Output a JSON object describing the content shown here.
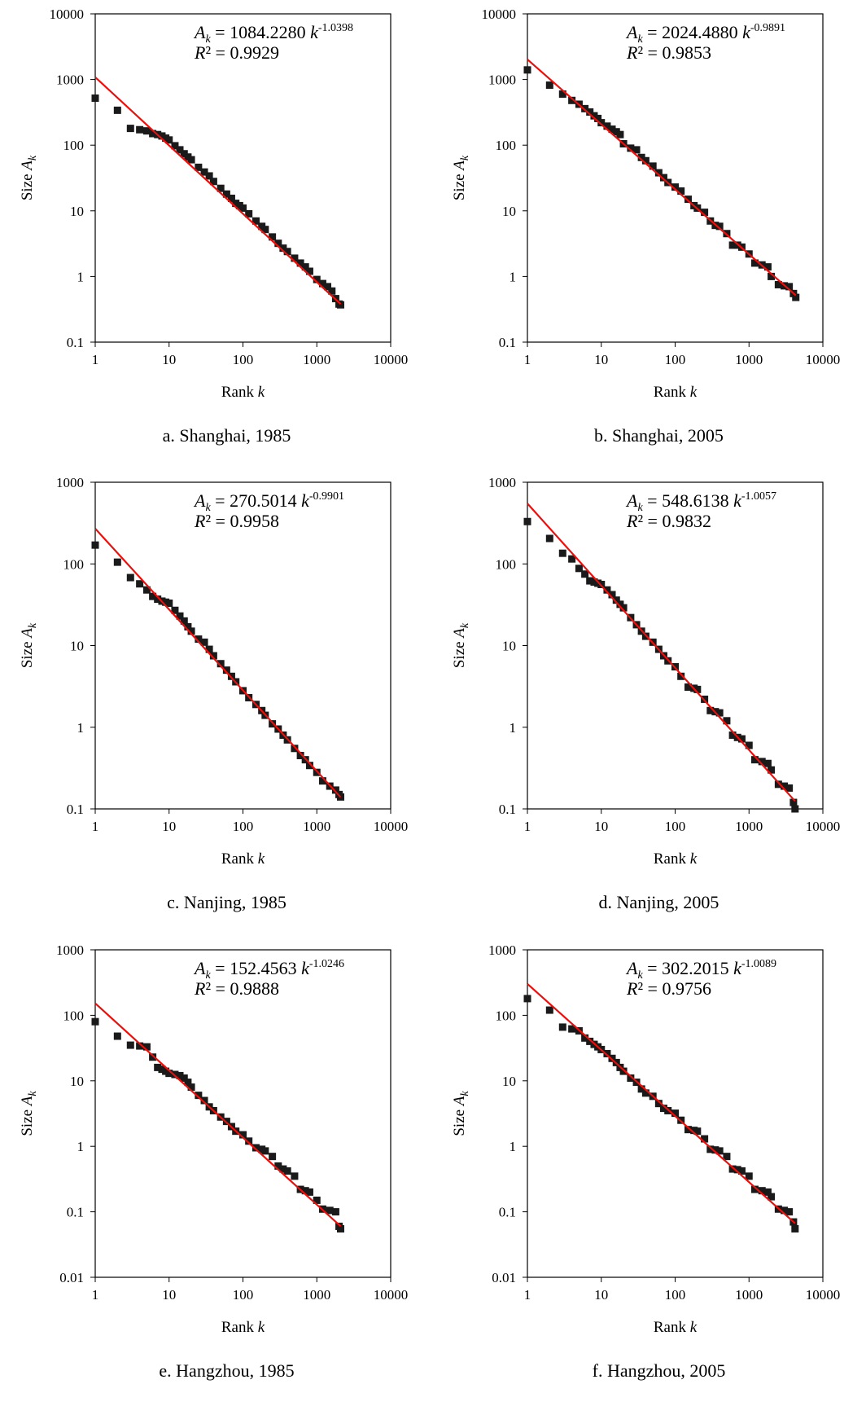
{
  "chart_data": [
    {
      "type": "scatter",
      "caption": "a. Shanghai, 1985",
      "xlabel_text": "Rank ",
      "xlabel_var": "k",
      "ylabel_text": "Size ",
      "ylabel_var": "A",
      "ylabel_sub": "k",
      "xlim": [
        1,
        10000
      ],
      "ylim": [
        0.1,
        10000
      ],
      "log_x": true,
      "log_y": true,
      "grid": false,
      "xticks": [
        "1",
        "10",
        "100",
        "1000",
        "10000"
      ],
      "yticks": [
        "0.1",
        "1",
        "10",
        "100",
        "1000",
        "10000"
      ],
      "equation": {
        "lhs": "A",
        "lhs_sub": "k",
        "coef": " = 1084.2280 ",
        "var": "k",
        "exp": "-1.0398"
      },
      "r2": {
        "label": "R",
        "text": "² = 0.9929"
      },
      "fit": {
        "a": 1084.228,
        "b": -1.0398
      },
      "marker_color": "#1a1a1a",
      "fit_color": "#e8100c",
      "points": [
        [
          1,
          520
        ],
        [
          2,
          340
        ],
        [
          3,
          180
        ],
        [
          4,
          172
        ],
        [
          5,
          165
        ],
        [
          6,
          150
        ],
        [
          7,
          145
        ],
        [
          8,
          138
        ],
        [
          9,
          128
        ],
        [
          10,
          120
        ],
        [
          12,
          98
        ],
        [
          14,
          85
        ],
        [
          16,
          74
        ],
        [
          18,
          66
        ],
        [
          20,
          60
        ],
        [
          25,
          46
        ],
        [
          30,
          39
        ],
        [
          35,
          34
        ],
        [
          40,
          28
        ],
        [
          50,
          22
        ],
        [
          60,
          18
        ],
        [
          70,
          15.5
        ],
        [
          80,
          13
        ],
        [
          90,
          12
        ],
        [
          100,
          11
        ],
        [
          120,
          9
        ],
        [
          150,
          7
        ],
        [
          180,
          5.8
        ],
        [
          200,
          5.2
        ],
        [
          250,
          4
        ],
        [
          300,
          3.2
        ],
        [
          350,
          2.7
        ],
        [
          400,
          2.4
        ],
        [
          500,
          1.9
        ],
        [
          600,
          1.6
        ],
        [
          700,
          1.4
        ],
        [
          800,
          1.2
        ],
        [
          1000,
          0.9
        ],
        [
          1200,
          0.78
        ],
        [
          1400,
          0.7
        ],
        [
          1600,
          0.6
        ],
        [
          1800,
          0.46
        ],
        [
          2000,
          0.38
        ],
        [
          2100,
          0.37
        ]
      ]
    },
    {
      "type": "scatter",
      "caption": "b. Shanghai, 2005",
      "xlabel_text": "Rank ",
      "xlabel_var": "k",
      "ylabel_text": "Size ",
      "ylabel_var": "A",
      "ylabel_sub": "k",
      "xlim": [
        1,
        10000
      ],
      "ylim": [
        0.1,
        10000
      ],
      "log_x": true,
      "log_y": true,
      "grid": false,
      "xticks": [
        "1",
        "10",
        "100",
        "1000",
        "10000"
      ],
      "yticks": [
        "0.1",
        "1",
        "10",
        "100",
        "1000",
        "10000"
      ],
      "equation": {
        "lhs": "A",
        "lhs_sub": "k",
        "coef": " = 2024.4880 ",
        "var": "k",
        "exp": "-0.9891"
      },
      "r2": {
        "label": "R",
        "text": "² = 0.9853"
      },
      "fit": {
        "a": 2024.488,
        "b": -0.9891
      },
      "marker_color": "#1a1a1a",
      "fit_color": "#e8100c",
      "points": [
        [
          1,
          1400
        ],
        [
          2,
          820
        ],
        [
          3,
          600
        ],
        [
          4,
          480
        ],
        [
          5,
          420
        ],
        [
          6,
          360
        ],
        [
          7,
          320
        ],
        [
          8,
          280
        ],
        [
          9,
          255
        ],
        [
          10,
          220
        ],
        [
          12,
          195
        ],
        [
          14,
          175
        ],
        [
          16,
          160
        ],
        [
          18,
          145
        ],
        [
          20,
          105
        ],
        [
          25,
          90
        ],
        [
          30,
          85
        ],
        [
          35,
          65
        ],
        [
          40,
          58
        ],
        [
          50,
          48
        ],
        [
          60,
          38
        ],
        [
          70,
          32
        ],
        [
          80,
          27
        ],
        [
          100,
          23
        ],
        [
          120,
          20
        ],
        [
          150,
          15
        ],
        [
          180,
          12
        ],
        [
          200,
          11
        ],
        [
          250,
          9.5
        ],
        [
          300,
          7
        ],
        [
          350,
          6
        ],
        [
          400,
          5.8
        ],
        [
          500,
          4.5
        ],
        [
          600,
          3
        ],
        [
          700,
          3
        ],
        [
          800,
          2.8
        ],
        [
          1000,
          2.2
        ],
        [
          1200,
          1.6
        ],
        [
          1500,
          1.5
        ],
        [
          1800,
          1.4
        ],
        [
          2000,
          1.0
        ],
        [
          2500,
          0.75
        ],
        [
          3000,
          0.72
        ],
        [
          3500,
          0.7
        ],
        [
          4000,
          0.55
        ],
        [
          4300,
          0.48
        ]
      ]
    },
    {
      "type": "scatter",
      "caption": "c. Nanjing, 1985",
      "xlabel_text": "Rank ",
      "xlabel_var": "k",
      "ylabel_text": "Size ",
      "ylabel_var": "A",
      "ylabel_sub": "k",
      "xlim": [
        1,
        10000
      ],
      "ylim": [
        0.1,
        1000
      ],
      "log_x": true,
      "log_y": true,
      "grid": false,
      "xticks": [
        "1",
        "10",
        "100",
        "1000",
        "10000"
      ],
      "yticks": [
        "0.1",
        "1",
        "10",
        "100",
        "1000"
      ],
      "equation": {
        "lhs": "A",
        "lhs_sub": "k",
        "coef": " = 270.5014 ",
        "var": "k",
        "exp": "-0.9901"
      },
      "r2": {
        "label": "R",
        "text": "² = 0.9958"
      },
      "fit": {
        "a": 270.5014,
        "b": -0.9901
      },
      "marker_color": "#1a1a1a",
      "fit_color": "#e8100c",
      "points": [
        [
          1,
          170
        ],
        [
          2,
          105
        ],
        [
          3,
          68
        ],
        [
          4,
          57
        ],
        [
          5,
          48
        ],
        [
          6,
          40
        ],
        [
          7,
          37
        ],
        [
          8,
          35
        ],
        [
          9,
          34
        ],
        [
          10,
          33
        ],
        [
          12,
          27
        ],
        [
          14,
          23
        ],
        [
          16,
          20
        ],
        [
          18,
          17
        ],
        [
          20,
          15
        ],
        [
          25,
          12
        ],
        [
          30,
          11
        ],
        [
          35,
          9
        ],
        [
          40,
          7.5
        ],
        [
          50,
          6
        ],
        [
          60,
          5
        ],
        [
          70,
          4.2
        ],
        [
          80,
          3.6
        ],
        [
          100,
          2.8
        ],
        [
          120,
          2.3
        ],
        [
          150,
          1.9
        ],
        [
          180,
          1.6
        ],
        [
          200,
          1.4
        ],
        [
          250,
          1.1
        ],
        [
          300,
          0.95
        ],
        [
          350,
          0.8
        ],
        [
          400,
          0.7
        ],
        [
          500,
          0.55
        ],
        [
          600,
          0.45
        ],
        [
          700,
          0.4
        ],
        [
          800,
          0.34
        ],
        [
          1000,
          0.28
        ],
        [
          1200,
          0.22
        ],
        [
          1500,
          0.19
        ],
        [
          1800,
          0.17
        ],
        [
          2000,
          0.15
        ],
        [
          2100,
          0.14
        ]
      ]
    },
    {
      "type": "scatter",
      "caption": "d. Nanjing, 2005",
      "xlabel_text": "Rank ",
      "xlabel_var": "k",
      "ylabel_text": "Size ",
      "ylabel_var": "A",
      "ylabel_sub": "k",
      "xlim": [
        1,
        10000
      ],
      "ylim": [
        0.1,
        1000
      ],
      "log_x": true,
      "log_y": true,
      "grid": false,
      "xticks": [
        "1",
        "10",
        "100",
        "1000",
        "10000"
      ],
      "yticks": [
        "0.1",
        "1",
        "10",
        "100",
        "1000"
      ],
      "equation": {
        "lhs": "A",
        "lhs_sub": "k",
        "coef": " = 548.6138 ",
        "var": "k",
        "exp": "-1.0057"
      },
      "r2": {
        "label": "R",
        "text": "² = 0.9832"
      },
      "fit": {
        "a": 548.6138,
        "b": -1.0057
      },
      "marker_color": "#1a1a1a",
      "fit_color": "#e8100c",
      "points": [
        [
          1,
          330
        ],
        [
          2,
          205
        ],
        [
          3,
          135
        ],
        [
          4,
          115
        ],
        [
          5,
          88
        ],
        [
          6,
          75
        ],
        [
          7,
          62
        ],
        [
          8,
          60
        ],
        [
          9,
          58
        ],
        [
          10,
          56
        ],
        [
          12,
          48
        ],
        [
          14,
          42
        ],
        [
          16,
          36
        ],
        [
          18,
          32
        ],
        [
          20,
          29
        ],
        [
          25,
          22
        ],
        [
          30,
          18
        ],
        [
          35,
          15
        ],
        [
          40,
          13
        ],
        [
          50,
          11
        ],
        [
          60,
          9
        ],
        [
          70,
          7.5
        ],
        [
          80,
          6.5
        ],
        [
          100,
          5.5
        ],
        [
          120,
          4.2
        ],
        [
          150,
          3.1
        ],
        [
          180,
          3
        ],
        [
          200,
          2.9
        ],
        [
          250,
          2.2
        ],
        [
          300,
          1.6
        ],
        [
          350,
          1.55
        ],
        [
          400,
          1.5
        ],
        [
          500,
          1.2
        ],
        [
          600,
          0.8
        ],
        [
          700,
          0.75
        ],
        [
          800,
          0.72
        ],
        [
          1000,
          0.6
        ],
        [
          1200,
          0.4
        ],
        [
          1500,
          0.38
        ],
        [
          1800,
          0.36
        ],
        [
          2000,
          0.3
        ],
        [
          2500,
          0.2
        ],
        [
          3000,
          0.19
        ],
        [
          3500,
          0.18
        ],
        [
          4000,
          0.12
        ],
        [
          4200,
          0.1
        ]
      ]
    },
    {
      "type": "scatter",
      "caption": "e. Hangzhou, 1985",
      "xlabel_text": "Rank ",
      "xlabel_var": "k",
      "ylabel_text": "Size ",
      "ylabel_var": "A",
      "ylabel_sub": "k",
      "xlim": [
        1,
        10000
      ],
      "ylim": [
        0.01,
        1000
      ],
      "log_x": true,
      "log_y": true,
      "grid": false,
      "xticks": [
        "1",
        "10",
        "100",
        "1000",
        "10000"
      ],
      "yticks": [
        "0.01",
        "0.1",
        "1",
        "10",
        "100",
        "1000"
      ],
      "equation": {
        "lhs": "A",
        "lhs_sub": "k",
        "coef": " = 152.4563 ",
        "var": "k",
        "exp": "-1.0246"
      },
      "r2": {
        "label": "R",
        "text": "² = 0.9888"
      },
      "fit": {
        "a": 152.4563,
        "b": -1.0246
      },
      "marker_color": "#1a1a1a",
      "fit_color": "#e8100c",
      "points": [
        [
          1,
          80
        ],
        [
          2,
          48
        ],
        [
          3,
          35
        ],
        [
          4,
          34
        ],
        [
          5,
          33
        ],
        [
          6,
          23
        ],
        [
          7,
          16
        ],
        [
          8,
          15
        ],
        [
          9,
          14
        ],
        [
          10,
          13
        ],
        [
          12,
          12.5
        ],
        [
          14,
          12
        ],
        [
          16,
          11
        ],
        [
          18,
          9.5
        ],
        [
          20,
          8
        ],
        [
          25,
          6
        ],
        [
          30,
          5
        ],
        [
          35,
          4
        ],
        [
          40,
          3.5
        ],
        [
          50,
          2.8
        ],
        [
          60,
          2.4
        ],
        [
          70,
          2
        ],
        [
          80,
          1.7
        ],
        [
          100,
          1.5
        ],
        [
          120,
          1.2
        ],
        [
          150,
          0.95
        ],
        [
          180,
          0.9
        ],
        [
          200,
          0.85
        ],
        [
          250,
          0.7
        ],
        [
          300,
          0.5
        ],
        [
          350,
          0.45
        ],
        [
          400,
          0.42
        ],
        [
          500,
          0.35
        ],
        [
          600,
          0.22
        ],
        [
          700,
          0.21
        ],
        [
          800,
          0.2
        ],
        [
          1000,
          0.15
        ],
        [
          1200,
          0.11
        ],
        [
          1500,
          0.105
        ],
        [
          1800,
          0.1
        ],
        [
          2000,
          0.06
        ],
        [
          2100,
          0.055
        ]
      ]
    },
    {
      "type": "scatter",
      "caption": "f. Hangzhou, 2005",
      "xlabel_text": "Rank ",
      "xlabel_var": "k",
      "ylabel_text": "Size ",
      "ylabel_var": "A",
      "ylabel_sub": "k",
      "xlim": [
        1,
        10000
      ],
      "ylim": [
        0.01,
        1000
      ],
      "log_x": true,
      "log_y": true,
      "grid": false,
      "xticks": [
        "1",
        "10",
        "100",
        "1000",
        "10000"
      ],
      "yticks": [
        "0.01",
        "0.1",
        "1",
        "10",
        "100",
        "1000"
      ],
      "equation": {
        "lhs": "A",
        "lhs_sub": "k",
        "coef": " = 302.2015 ",
        "var": "k",
        "exp": "-1.0089"
      },
      "r2": {
        "label": "R",
        "text": "² = 0.9756"
      },
      "fit": {
        "a": 302.2015,
        "b": -1.0089
      },
      "marker_color": "#1a1a1a",
      "fit_color": "#e8100c",
      "points": [
        [
          1,
          180
        ],
        [
          2,
          120
        ],
        [
          3,
          66
        ],
        [
          4,
          62
        ],
        [
          5,
          58
        ],
        [
          6,
          45
        ],
        [
          7,
          40
        ],
        [
          8,
          36
        ],
        [
          9,
          33
        ],
        [
          10,
          30
        ],
        [
          12,
          26
        ],
        [
          14,
          22
        ],
        [
          16,
          19
        ],
        [
          18,
          16
        ],
        [
          20,
          14
        ],
        [
          25,
          11
        ],
        [
          30,
          9.5
        ],
        [
          35,
          7.5
        ],
        [
          40,
          6.5
        ],
        [
          50,
          5.8
        ],
        [
          60,
          4.5
        ],
        [
          70,
          3.8
        ],
        [
          80,
          3.5
        ],
        [
          100,
          3.2
        ],
        [
          120,
          2.5
        ],
        [
          150,
          1.8
        ],
        [
          180,
          1.75
        ],
        [
          200,
          1.7
        ],
        [
          250,
          1.3
        ],
        [
          300,
          0.9
        ],
        [
          350,
          0.88
        ],
        [
          400,
          0.85
        ],
        [
          500,
          0.7
        ],
        [
          600,
          0.45
        ],
        [
          700,
          0.44
        ],
        [
          800,
          0.42
        ],
        [
          1000,
          0.35
        ],
        [
          1200,
          0.22
        ],
        [
          1500,
          0.21
        ],
        [
          1800,
          0.2
        ],
        [
          2000,
          0.17
        ],
        [
          2500,
          0.11
        ],
        [
          3000,
          0.105
        ],
        [
          3500,
          0.1
        ],
        [
          4000,
          0.07
        ],
        [
          4200,
          0.055
        ]
      ]
    }
  ]
}
